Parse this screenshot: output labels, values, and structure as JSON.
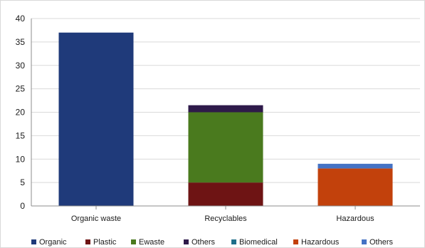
{
  "chart_data": {
    "type": "bar",
    "stacked": true,
    "categories": [
      "Organic waste",
      "Recyclables",
      "Hazardous"
    ],
    "series": [
      {
        "name": "Organic",
        "color": "#1f3a7a",
        "values": [
          37,
          0,
          0
        ]
      },
      {
        "name": "Plastic",
        "color": "#6e1414",
        "values": [
          0,
          5,
          0
        ]
      },
      {
        "name": "Ewaste",
        "color": "#4a7a1e",
        "values": [
          0,
          15,
          0
        ]
      },
      {
        "name": "Others",
        "color": "#2e1a4a",
        "values": [
          0,
          1.5,
          0
        ]
      },
      {
        "name": "Biomedical",
        "color": "#1e6f8a",
        "values": [
          0,
          0,
          0
        ]
      },
      {
        "name": "Hazardous",
        "color": "#c2410c",
        "values": [
          0,
          0,
          8
        ]
      },
      {
        "name": "Others",
        "color": "#4472c4",
        "values": [
          0,
          0,
          1
        ]
      }
    ],
    "yticks": [
      0,
      5,
      10,
      15,
      20,
      25,
      30,
      35,
      40
    ],
    "ylim": [
      0,
      40
    ],
    "grid": true,
    "legend_position": "bottom"
  }
}
